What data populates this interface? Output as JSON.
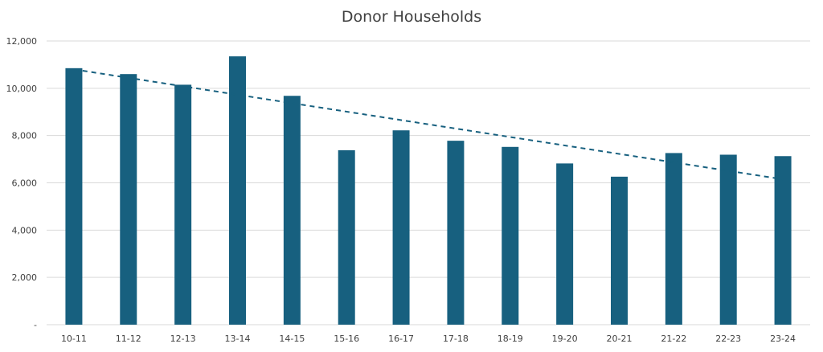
{
  "chart_data": {
    "type": "bar",
    "title": "Donor Households",
    "categories": [
      "10-11",
      "11-12",
      "12-13",
      "13-14",
      "14-15",
      "15-16",
      "16-17",
      "17-18",
      "18-19",
      "19-20",
      "20-21",
      "21-22",
      "22-23",
      "23-24"
    ],
    "series": [
      {
        "values": [
          10850,
          10600,
          10150,
          11350,
          9680,
          7380,
          8220,
          7780,
          7520,
          6820,
          6260,
          7260,
          7190,
          7130
        ]
      }
    ],
    "trendline": {
      "type": "linear",
      "style": "dashed",
      "start": 10800,
      "end": 6150
    },
    "yticks": [
      0,
      2000,
      4000,
      6000,
      8000,
      10000,
      12000
    ],
    "ytick_labels": [
      "-",
      "2,000",
      "4,000",
      "6,000",
      "8,000",
      "10,000",
      "12,000"
    ],
    "ylim": [
      0,
      12000
    ],
    "xlabel": "",
    "ylabel": "",
    "grid": true,
    "bar_color": "#17607f",
    "trend_color": "#17607f",
    "grid_color": "#d9d9d9"
  }
}
